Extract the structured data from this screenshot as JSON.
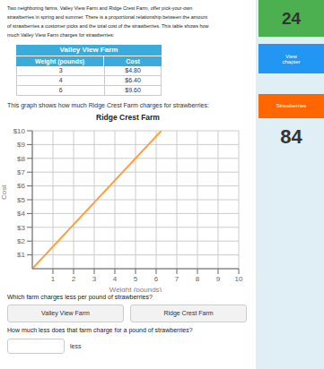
{
  "chart_data": {
    "type": "line",
    "title": "Ridge Crest Farm",
    "xlabel": "Weight (pounds)",
    "ylabel": "Cost",
    "x": [
      0,
      6.25
    ],
    "values": [
      0,
      10
    ],
    "color": "#FFA040",
    "xlim": [
      0,
      10
    ],
    "ylim": [
      0,
      10
    ],
    "xticks": [
      1,
      2,
      3,
      4,
      5,
      6,
      7,
      8,
      9,
      10
    ],
    "yticks": [
      {
        "value": 1,
        "label": "$1"
      },
      {
        "value": 2,
        "label": "$2"
      },
      {
        "value": 3,
        "label": "$3"
      },
      {
        "value": 4,
        "label": "$4"
      },
      {
        "value": 5,
        "label": "$5"
      },
      {
        "value": 6,
        "label": "$6"
      },
      {
        "value": 7,
        "label": "$7"
      },
      {
        "value": 8,
        "label": "$8"
      },
      {
        "value": 9,
        "label": "$9"
      },
      {
        "value": 10,
        "label": "$10"
      }
    ],
    "grid": true,
    "annotations": [
      "Two neighboring farms, Valley View Farm and Ridge Crest Farm, offer pick-your-own",
      "strawberries in spring and summer. There is a proportional relationship between the amount",
      "of strawberries a customer picks and the total cost of the strawberries. This table shows how",
      "much Valley View Farm charges for strawberries:",
      "Valley View Farm",
      "Weight (pounds)",
      "Cost",
      "3",
      "$4.80",
      "4",
      "$6.40",
      "6",
      "$9.60",
      "This graph shows how much Ridge Crest Farm charges for strawberries:",
      "Which farm charges less per pound of strawberries?",
      "Valley View Farm",
      "Ridge Crest Farm",
      "How much less does that farm charge for a pound of strawberries?",
      "less",
      "24",
      "View\nchapter",
      "Strawberries",
      "84"
    ]
  }
}
